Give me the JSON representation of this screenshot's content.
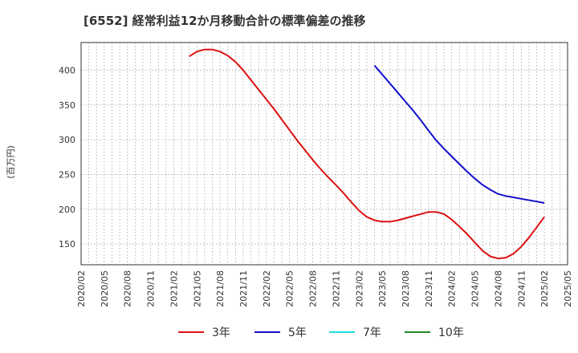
{
  "chart_data": {
    "type": "line",
    "title": "[6552]  経常利益12か月移動合計の標準偏差の推移",
    "ylabel": "(百万円)",
    "xlabel": "",
    "ylim": [
      120,
      440
    ],
    "y_ticks": [
      150,
      200,
      250,
      300,
      350,
      400
    ],
    "x_range": [
      "2020/02",
      "2025/05"
    ],
    "x_ticks": [
      "2020/02",
      "2020/05",
      "2020/08",
      "2020/11",
      "2021/02",
      "2021/05",
      "2021/08",
      "2021/11",
      "2022/02",
      "2022/05",
      "2022/08",
      "2022/11",
      "2023/02",
      "2023/05",
      "2023/08",
      "2023/11",
      "2024/02",
      "2024/05",
      "2024/08",
      "2024/11",
      "2025/02",
      "2025/05"
    ],
    "grid": true,
    "legend_position": "bottom",
    "series": [
      {
        "name": "3年",
        "color": "#dd1111",
        "points": [
          [
            "2021/04",
            420
          ],
          [
            "2021/05",
            427
          ],
          [
            "2021/06",
            430
          ],
          [
            "2021/07",
            430
          ],
          [
            "2021/08",
            427
          ],
          [
            "2021/09",
            421
          ],
          [
            "2021/10",
            412
          ],
          [
            "2021/11",
            400
          ],
          [
            "2021/12",
            386
          ],
          [
            "2022/01",
            372
          ],
          [
            "2022/02",
            358
          ],
          [
            "2022/03",
            344
          ],
          [
            "2022/04",
            329
          ],
          [
            "2022/05",
            314
          ],
          [
            "2022/06",
            299
          ],
          [
            "2022/07",
            285
          ],
          [
            "2022/08",
            271
          ],
          [
            "2022/09",
            258
          ],
          [
            "2022/10",
            246
          ],
          [
            "2022/11",
            235
          ],
          [
            "2022/12",
            223
          ],
          [
            "2023/01",
            210
          ],
          [
            "2023/02",
            198
          ],
          [
            "2023/03",
            189
          ],
          [
            "2023/04",
            184
          ],
          [
            "2023/05",
            182
          ],
          [
            "2023/06",
            182
          ],
          [
            "2023/07",
            184
          ],
          [
            "2023/08",
            187
          ],
          [
            "2023/09",
            190
          ],
          [
            "2023/10",
            193
          ],
          [
            "2023/11",
            196
          ],
          [
            "2023/12",
            196
          ],
          [
            "2024/01",
            193
          ],
          [
            "2024/02",
            185
          ],
          [
            "2024/03",
            175
          ],
          [
            "2024/04",
            164
          ],
          [
            "2024/05",
            152
          ],
          [
            "2024/06",
            140
          ],
          [
            "2024/07",
            132
          ],
          [
            "2024/08",
            129
          ],
          [
            "2024/09",
            130
          ],
          [
            "2024/10",
            136
          ],
          [
            "2024/11",
            146
          ],
          [
            "2024/12",
            159
          ],
          [
            "2025/01",
            174
          ],
          [
            "2025/02",
            189
          ]
        ]
      },
      {
        "name": "5年",
        "color": "#1111cc",
        "points": [
          [
            "2023/04",
            407
          ],
          [
            "2023/05",
            394
          ],
          [
            "2023/06",
            381
          ],
          [
            "2023/07",
            368
          ],
          [
            "2023/08",
            355
          ],
          [
            "2023/09",
            342
          ],
          [
            "2023/10",
            328
          ],
          [
            "2023/11",
            313
          ],
          [
            "2023/12",
            299
          ],
          [
            "2024/01",
            287
          ],
          [
            "2024/02",
            276
          ],
          [
            "2024/03",
            265
          ],
          [
            "2024/04",
            254
          ],
          [
            "2024/05",
            244
          ],
          [
            "2024/06",
            235
          ],
          [
            "2024/07",
            228
          ],
          [
            "2024/08",
            222
          ],
          [
            "2024/09",
            219
          ],
          [
            "2024/10",
            217
          ],
          [
            "2024/11",
            215
          ],
          [
            "2024/12",
            213
          ],
          [
            "2025/01",
            211
          ],
          [
            "2025/02",
            209
          ]
        ]
      },
      {
        "name": "7年",
        "color": "#22dddd",
        "points": []
      },
      {
        "name": "10年",
        "color": "#228822",
        "points": []
      }
    ]
  }
}
